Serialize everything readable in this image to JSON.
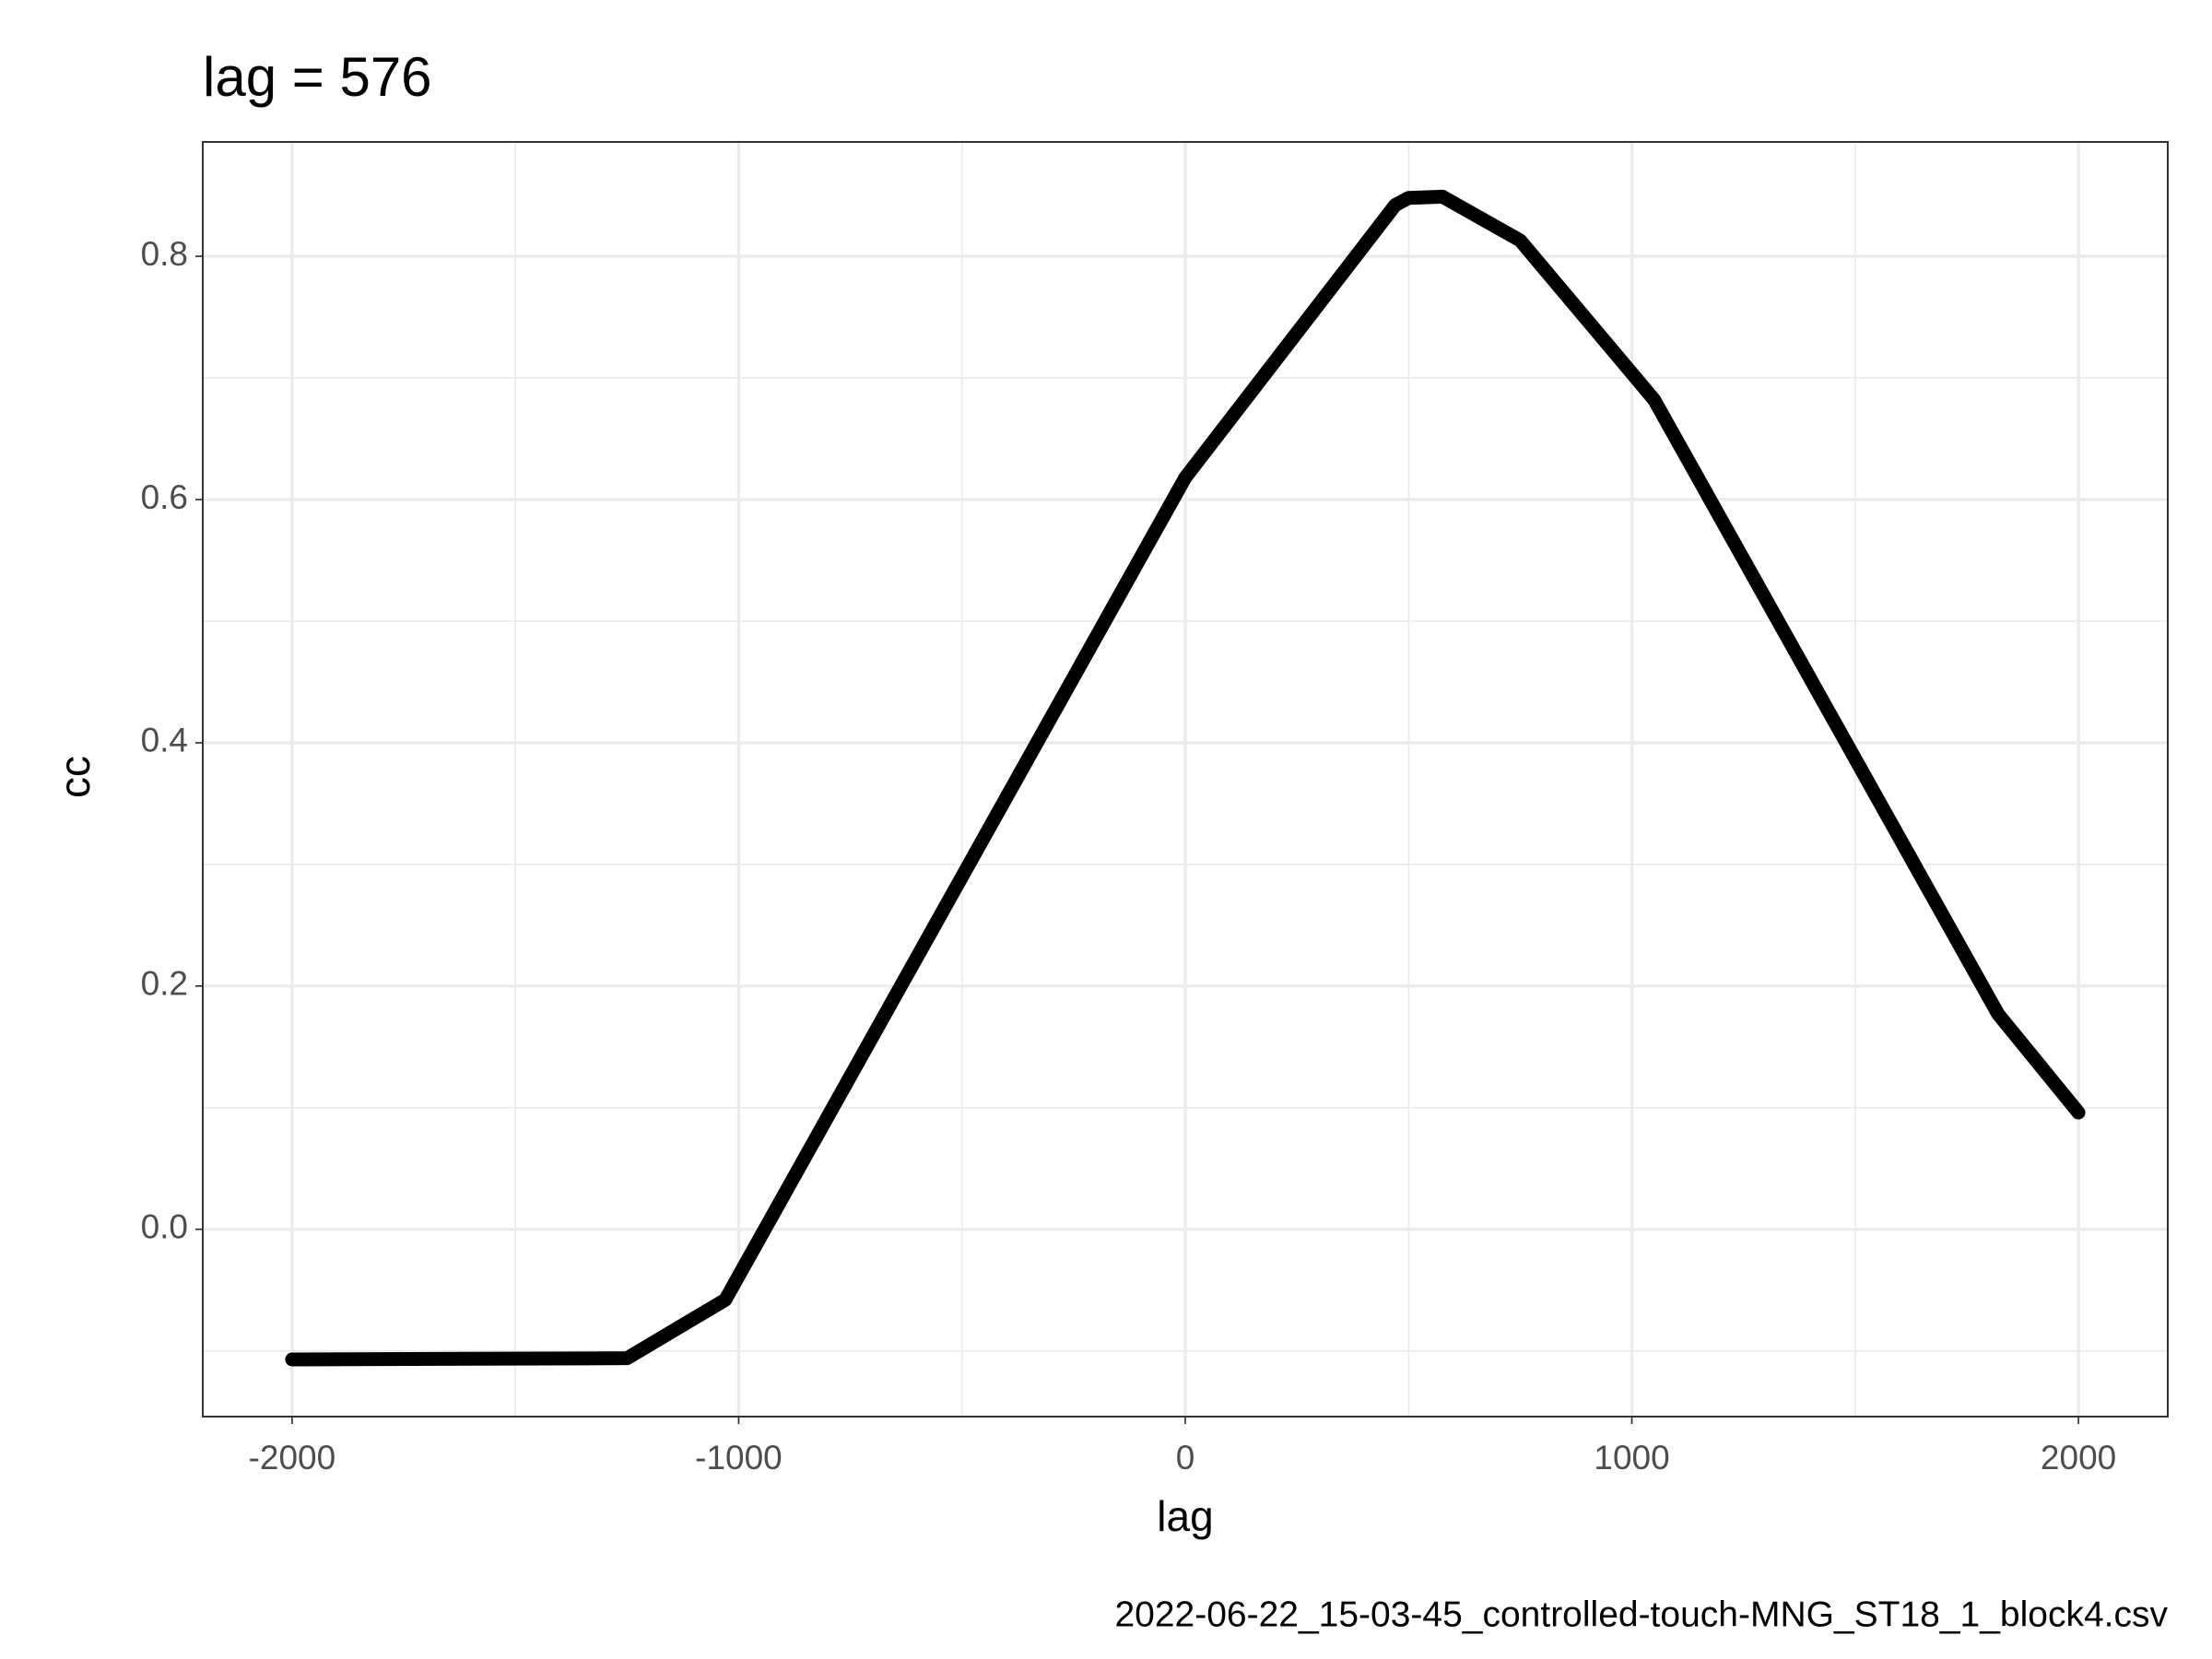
{
  "chart_data": {
    "type": "line",
    "title": "lag = 576",
    "x_label": "lag",
    "y_label": "cc",
    "caption": "2022-06-22_15-03-45_controlled-touch-MNG_ST18_1_block4.csv",
    "series": [
      {
        "color": "#000000",
        "x": [
          -2000,
          -1250,
          -1030,
          0,
          470,
          500,
          576,
          750,
          1050,
          1820,
          2000
        ],
        "values": [
          -0.107,
          -0.106,
          -0.058,
          0.618,
          0.842,
          0.848,
          0.849,
          0.813,
          0.682,
          0.177,
          0.096
        ]
      }
    ],
    "xlim": [
      -2200,
      2200
    ],
    "xticks": [
      -2000,
      -1000,
      0,
      1000,
      2000
    ],
    "ylim": [
      -0.154,
      0.894
    ],
    "yticks": [
      {
        "value": 0,
        "label": "0.0"
      },
      0.2,
      0.4,
      0.6,
      0.8
    ],
    "grid": true
  }
}
